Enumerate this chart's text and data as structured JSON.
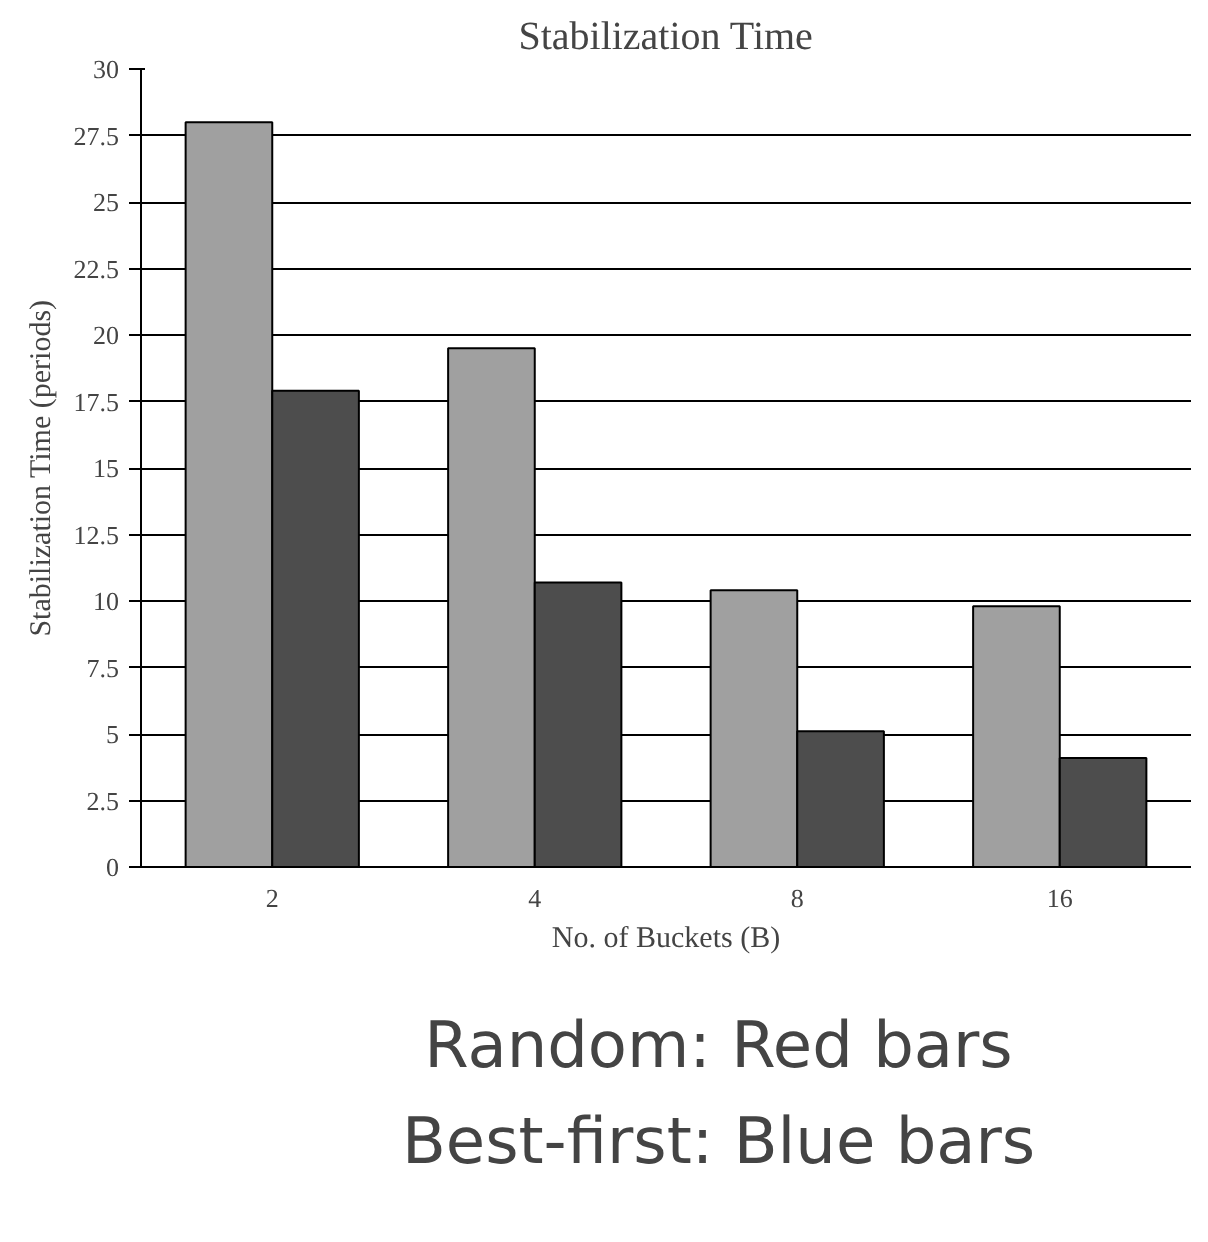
{
  "chart_data": {
    "type": "bar",
    "title": "Stabilization Time",
    "xlabel": "No. of Buckets (B)",
    "ylabel": "Stabilization Time (periods)",
    "categories": [
      "2",
      "4",
      "8",
      "16"
    ],
    "series": [
      {
        "color": "#a0a0a0",
        "values": [
          28.0,
          19.5,
          10.4,
          9.8
        ]
      },
      {
        "color": "#4d4d4d",
        "values": [
          17.9,
          10.7,
          5.1,
          4.1
        ]
      }
    ],
    "ylim": [
      0,
      30
    ],
    "yticks": [
      0,
      {
        "value": 2.5,
        "label": "2.5"
      },
      5,
      {
        "value": 7.5,
        "label": "7.5"
      },
      10,
      {
        "value": 12.5,
        "label": "12.5"
      },
      15,
      {
        "value": 17.5,
        "label": "17.5"
      },
      20,
      {
        "value": 22.5,
        "label": "22.5"
      },
      25,
      {
        "value": 27.5,
        "label": "27.5"
      },
      30
    ],
    "grid": "y",
    "annotations": [
      "Random: Red bars",
      "Best-first: Blue bars"
    ]
  }
}
